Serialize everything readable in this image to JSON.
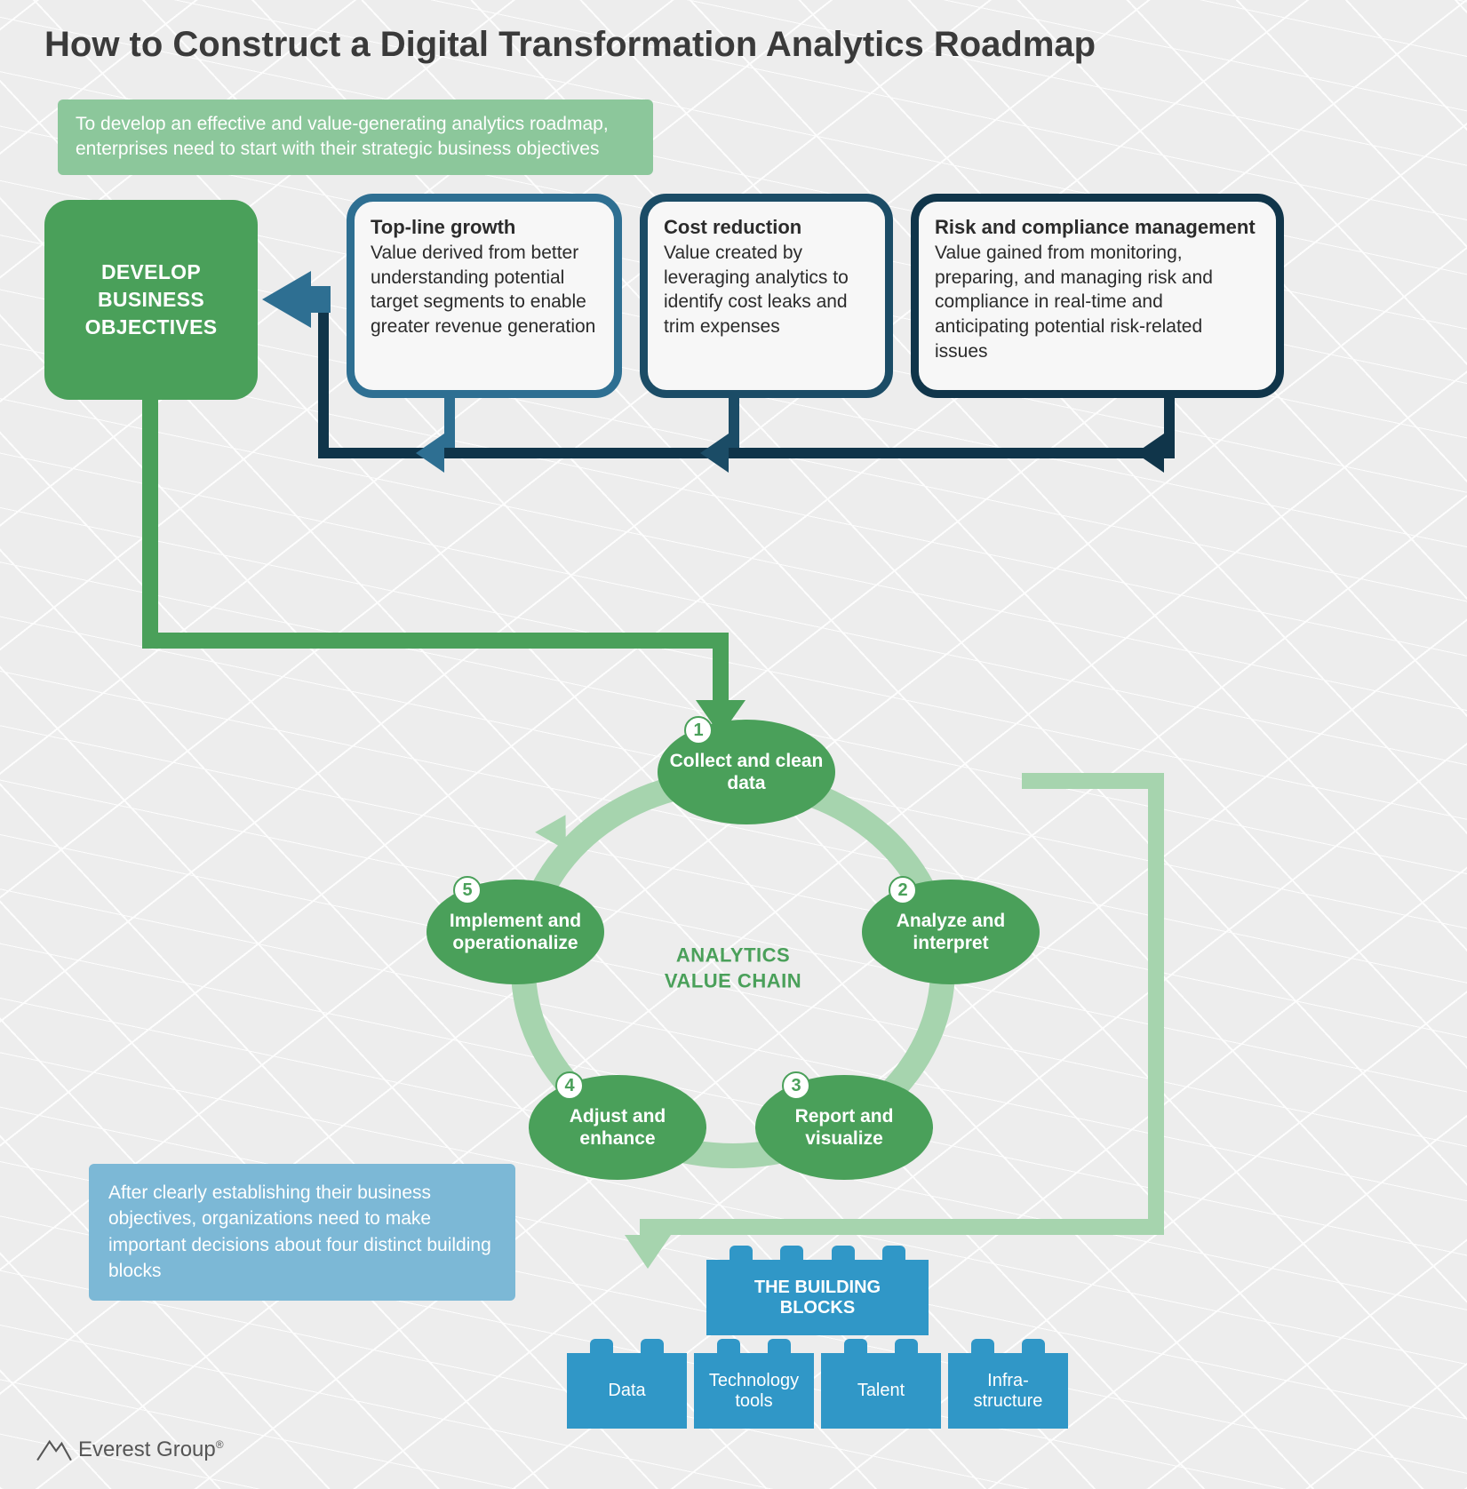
{
  "title": "How to Construct a Digital Transformation Analytics Roadmap",
  "intro_callout": "To develop an effective and value-generating analytics roadmap, enterprises need to start with their strategic business objectives",
  "develop_box": "DEVELOP BUSINESS OBJECTIVES",
  "objectives": [
    {
      "title": "Top-line growth",
      "desc": "Value derived from better understanding potential target segments to enable greater revenue generation",
      "border_color": "#2e6f92"
    },
    {
      "title": "Cost reduction",
      "desc": "Value created by leveraging analytics to identify cost leaks and trim expenses",
      "border_color": "#1b4c66"
    },
    {
      "title": "Risk and compliance management",
      "desc": "Value gained from monitoring, preparing, and managing risk and compliance in real-time and anticipating potential risk-related issues",
      "border_color": "#10354a"
    }
  ],
  "cycle": {
    "center_label": "ANALYTICS VALUE CHAIN",
    "ring_color": "#a6d4ae",
    "node_color": "#4aa05a",
    "nodes": [
      {
        "num": "1",
        "label": "Collect and clean data"
      },
      {
        "num": "2",
        "label": "Analyze and interpret"
      },
      {
        "num": "3",
        "label": "Report and visualize"
      },
      {
        "num": "4",
        "label": "Adjust and enhance"
      },
      {
        "num": "5",
        "label": "Implement and operationalize"
      }
    ]
  },
  "blue_callout": "After clearly establishing their business objectives, organizations need to make important decisions about four distinct building blocks",
  "building_blocks": {
    "main_label": "THE BUILDING BLOCKS",
    "blocks": [
      "Data",
      "Technology tools",
      "Talent",
      "Infra-\nstructure"
    ],
    "color": "#3097c7"
  },
  "colors": {
    "green_primary": "#4aa05a",
    "green_light": "#a6d4ae",
    "green_callout": "#8cc79b",
    "blue_callout": "#7cb8d6",
    "navy_dark": "#10354a",
    "navy_mid": "#1b4c66",
    "navy_light": "#2e6f92",
    "bg": "#ededed",
    "text": "#3a3a3a"
  },
  "logo_text": "Everest Group",
  "logo_suffix": "®"
}
